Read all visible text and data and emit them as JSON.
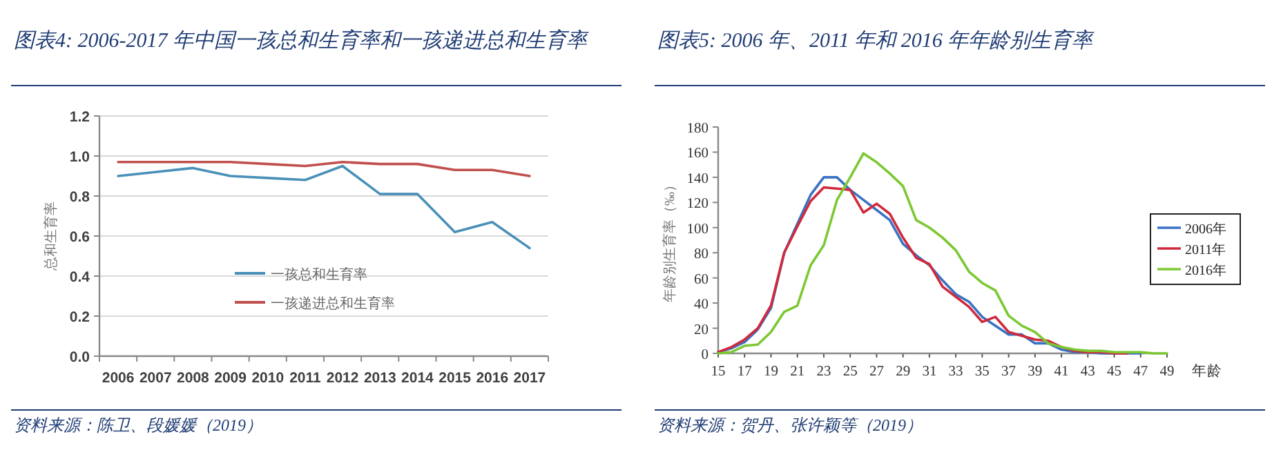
{
  "chart_data": [
    {
      "type": "line",
      "title": "图表4:  2006-2017 年中国一孩总和生育率和一孩递进总和生育率",
      "ylabel": "总和生育率",
      "categories": [
        "2006",
        "2007",
        "2008",
        "2009",
        "2010",
        "2011",
        "2012",
        "2013",
        "2014",
        "2015",
        "2016",
        "2017"
      ],
      "series": [
        {
          "name": "一孩总和生育率",
          "color": "#4a90b8",
          "values": [
            0.9,
            0.92,
            0.94,
            0.9,
            0.89,
            0.88,
            0.95,
            0.81,
            0.81,
            0.62,
            0.67,
            0.54
          ]
        },
        {
          "name": "一孩递进总和生育率",
          "color": "#c0504d",
          "values": [
            0.97,
            0.97,
            0.97,
            0.97,
            0.96,
            0.95,
            0.97,
            0.96,
            0.96,
            0.93,
            0.93,
            0.9
          ]
        }
      ],
      "ylim": [
        0,
        1.2
      ],
      "yticks": [
        {
          "value": 0,
          "label": "0.0"
        },
        0.2,
        0.4,
        0.6,
        0.8,
        {
          "value": 1,
          "label": "1.0"
        },
        1.2
      ],
      "grid": "y",
      "legend": "bottom",
      "marker": "none",
      "line_style": "solid",
      "annotations": [
        "资料来源：陈卫、段媛媛（2019）"
      ]
    },
    {
      "type": "line",
      "title": "图表5:  2006 年、2011 年和 2016 年年龄别生育率",
      "xlabel": "年龄",
      "ylabel": "年龄别生育率（‰）",
      "x": [
        15,
        16,
        17,
        18,
        19,
        20,
        21,
        22,
        23,
        24,
        25,
        26,
        27,
        28,
        29,
        30,
        31,
        32,
        33,
        34,
        35,
        36,
        37,
        38,
        39,
        40,
        41,
        42,
        43,
        44,
        45,
        46,
        47,
        48,
        49
      ],
      "series": [
        {
          "name": "2006年",
          "color": "#3a72c4",
          "values": [
            1,
            4,
            9,
            19,
            36,
            80,
            103,
            126,
            140,
            140,
            130,
            122,
            114,
            106,
            87,
            78,
            70,
            58,
            47,
            41,
            29,
            22,
            15,
            15,
            8,
            8,
            3,
            1,
            1,
            0,
            0,
            0,
            0,
            null,
            null
          ]
        },
        {
          "name": "2011年",
          "color": "#d0293c",
          "values": [
            1,
            5,
            11,
            20,
            38,
            80,
            101,
            121,
            132,
            131,
            130,
            112,
            119,
            111,
            92,
            76,
            71,
            53,
            45,
            37,
            25,
            29,
            17,
            14,
            11,
            10,
            5,
            2,
            1,
            1,
            0,
            0,
            null,
            null,
            null
          ]
        },
        {
          "name": "2016年",
          "color": "#7cc832",
          "values": [
            0,
            1,
            6,
            7,
            17,
            33,
            38,
            70,
            86,
            122,
            140,
            159,
            152,
            143,
            133,
            106,
            100,
            92,
            82,
            65,
            56,
            50,
            30,
            22,
            17,
            8,
            5,
            3,
            2,
            2,
            1,
            1,
            1,
            0,
            0
          ]
        }
      ],
      "xlim": [
        15,
        49
      ],
      "xticks": [
        15,
        17,
        19,
        21,
        23,
        25,
        27,
        29,
        31,
        33,
        35,
        37,
        39,
        41,
        43,
        45,
        47,
        49
      ],
      "ylim": [
        0,
        180
      ],
      "yticks": [
        0,
        20,
        40,
        60,
        80,
        100,
        120,
        140,
        160,
        180
      ],
      "grid": false,
      "legend": "right",
      "marker": "none",
      "line_style": "solid",
      "annotations": [
        "资料来源：贺丹、张许颖等（2019）"
      ]
    }
  ]
}
